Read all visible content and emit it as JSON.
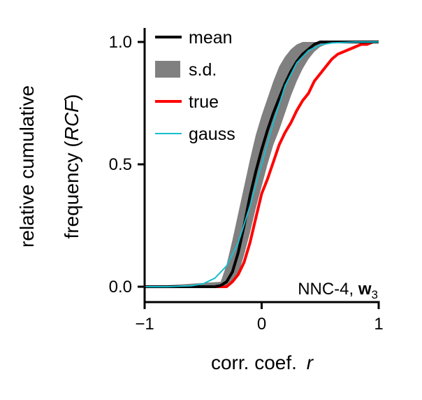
{
  "chart_data": {
    "type": "line",
    "xlabel": "corr. coef.",
    "xlabel_var": "r",
    "ylabel_line1": "relative cumulative",
    "ylabel_line2_prefix": "frequency (",
    "ylabel_line2_var": "RCF",
    "ylabel_line2_suffix": ")",
    "xlim": [
      -1,
      1
    ],
    "ylim": [
      -0.06,
      1.06
    ],
    "x_ticks": [
      {
        "value": -1,
        "label": "−1"
      },
      {
        "value": 0,
        "label": "0"
      },
      {
        "value": 1,
        "label": "1"
      }
    ],
    "y_ticks": [
      {
        "value": 0.0,
        "label": "0.0"
      },
      {
        "value": 0.5,
        "label": "0.5"
      },
      {
        "value": 1.0,
        "label": "1.0"
      }
    ],
    "grid": false,
    "legend_position": "top-left",
    "annotation": {
      "prefix": "NNC-4, ",
      "bold": "w",
      "subscript": "3"
    },
    "series": [
      {
        "name": "s.d.",
        "kind": "band",
        "color": "#808080",
        "x": [
          -1.0,
          -0.35,
          -0.3,
          -0.25,
          -0.2,
          -0.15,
          -0.1,
          -0.05,
          0.0,
          0.05,
          0.1,
          0.15,
          0.2,
          0.25,
          0.3,
          0.35,
          0.4,
          0.45,
          0.5,
          0.55,
          0.6,
          0.7,
          1.0
        ],
        "lower": [
          0.0,
          0.0,
          0.005,
          0.02,
          0.05,
          0.13,
          0.22,
          0.32,
          0.41,
          0.5,
          0.58,
          0.64,
          0.71,
          0.78,
          0.84,
          0.89,
          0.93,
          0.96,
          0.98,
          0.99,
          1.0,
          1.0,
          1.0
        ],
        "upper": [
          0.0,
          0.02,
          0.09,
          0.19,
          0.3,
          0.41,
          0.52,
          0.62,
          0.7,
          0.77,
          0.84,
          0.9,
          0.94,
          0.97,
          0.99,
          1.0,
          1.0,
          1.0,
          1.0,
          1.0,
          1.0,
          1.0,
          1.0
        ]
      },
      {
        "name": "mean",
        "kind": "line",
        "color": "#000000",
        "width": 4,
        "x": [
          -1.0,
          -0.4,
          -0.35,
          -0.3,
          -0.25,
          -0.2,
          -0.15,
          -0.1,
          -0.05,
          0.0,
          0.05,
          0.1,
          0.15,
          0.2,
          0.25,
          0.3,
          0.35,
          0.4,
          0.45,
          0.5,
          0.55,
          1.0
        ],
        "y": [
          0.0,
          0.0,
          0.005,
          0.02,
          0.06,
          0.14,
          0.25,
          0.37,
          0.47,
          0.56,
          0.64,
          0.71,
          0.77,
          0.83,
          0.88,
          0.92,
          0.95,
          0.97,
          0.99,
          1.0,
          1.0,
          1.0
        ]
      },
      {
        "name": "true",
        "kind": "line",
        "color": "#ff0000",
        "width": 4,
        "x": [
          -1.0,
          -0.3,
          -0.25,
          -0.2,
          -0.15,
          -0.1,
          -0.05,
          0.0,
          0.05,
          0.1,
          0.15,
          0.2,
          0.25,
          0.3,
          0.35,
          0.4,
          0.45,
          0.5,
          0.55,
          0.6,
          0.65,
          0.7,
          0.75,
          0.8,
          0.85,
          0.9,
          0.95,
          1.0
        ],
        "y": [
          0.0,
          0.0,
          0.02,
          0.05,
          0.1,
          0.18,
          0.28,
          0.38,
          0.44,
          0.51,
          0.58,
          0.63,
          0.67,
          0.72,
          0.76,
          0.79,
          0.84,
          0.87,
          0.9,
          0.93,
          0.95,
          0.96,
          0.97,
          0.98,
          0.99,
          0.99,
          1.0,
          1.0
        ]
      },
      {
        "name": "gauss",
        "kind": "line",
        "color": "#17becf",
        "width": 2,
        "x": [
          -1.0,
          -0.8,
          -0.6,
          -0.5,
          -0.4,
          -0.3,
          -0.2,
          -0.1,
          0.0,
          0.1,
          0.2,
          0.3,
          0.4,
          0.5,
          0.6,
          0.8,
          1.0
        ],
        "y": [
          0.0,
          0.0,
          0.004,
          0.012,
          0.035,
          0.085,
          0.18,
          0.33,
          0.5,
          0.67,
          0.82,
          0.915,
          0.965,
          0.988,
          0.996,
          1.0,
          1.0
        ]
      }
    ]
  }
}
